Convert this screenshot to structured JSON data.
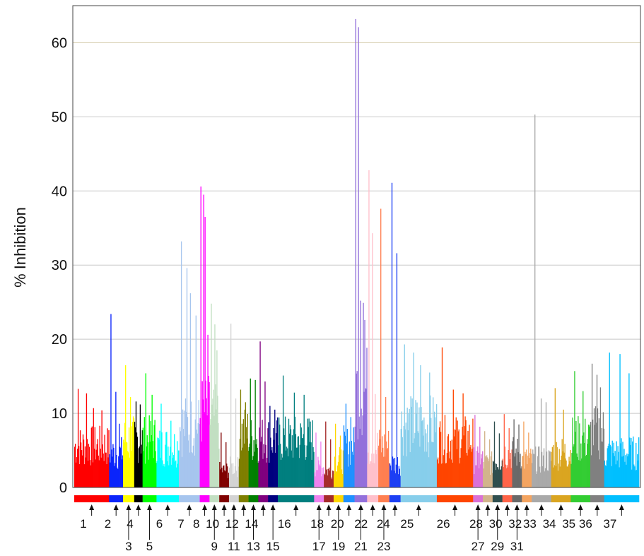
{
  "chart_data": {
    "type": "bar",
    "title": "",
    "xlabel": "",
    "ylabel": "% Inhibition",
    "ylim": [
      0,
      65
    ],
    "yticks": [
      0,
      10,
      20,
      30,
      40,
      50,
      60
    ],
    "grid": "horizontal",
    "groups": [
      {
        "label": "1",
        "color": "#ff0000",
        "n": 50,
        "base": 6,
        "peaks": [
          13.3,
          12.7,
          10.7,
          10.4
        ]
      },
      {
        "label": "2",
        "color": "#0b24fb",
        "n": 20,
        "base": 5,
        "peaks": [
          23.4,
          12.9,
          8.6
        ]
      },
      {
        "label": "3",
        "color": "#ffff00",
        "n": 16,
        "base": 7,
        "peaks": [
          16.5,
          12.2
        ]
      },
      {
        "label": "4",
        "color": "#000000",
        "n": 12,
        "base": 7,
        "peaks": [
          11.6,
          11.2
        ]
      },
      {
        "label": "5",
        "color": "#00ff00",
        "n": 20,
        "base": 7,
        "peaks": [
          15.4,
          12.5
        ]
      },
      {
        "label": "6",
        "color": "#00ffff",
        "n": 32,
        "base": 6,
        "peaks": [
          11.3,
          9.0
        ]
      },
      {
        "label": "7",
        "color": "#a6c5ee",
        "n": 30,
        "base": 9,
        "peaks": [
          33.2,
          29.6,
          26.2,
          23.2
        ]
      },
      {
        "label": "8",
        "color": "#ff00ff",
        "n": 14,
        "base": 11,
        "peaks": [
          40.6,
          39.5,
          36.5,
          20.6
        ]
      },
      {
        "label": "9",
        "color": "#c2dfc2",
        "n": 14,
        "base": 10,
        "peaks": [
          24.8,
          22.0,
          18.5
        ]
      },
      {
        "label": "10",
        "color": "#7f0000",
        "n": 14,
        "base": 2.5,
        "peaks": [
          7.4,
          6.1
        ]
      },
      {
        "label": "11",
        "color": "#d3d3d3",
        "n": 14,
        "base": 3,
        "peaks": [
          22.1,
          12.0
        ]
      },
      {
        "label": "12",
        "color": "#7f7f00",
        "n": 14,
        "base": 8,
        "peaks": [
          13.2,
          11.5
        ]
      },
      {
        "label": "13",
        "color": "#007f00",
        "n": 14,
        "base": 7,
        "peaks": [
          14.7,
          14.5
        ]
      },
      {
        "label": "14",
        "color": "#7f007f",
        "n": 14,
        "base": 7,
        "peaks": [
          19.7,
          14.3
        ]
      },
      {
        "label": "15",
        "color": "#00007f",
        "n": 14,
        "base": 7,
        "peaks": [
          11.0,
          10.5
        ]
      },
      {
        "label": "16",
        "color": "#007f7f",
        "n": 52,
        "base": 7,
        "peaks": [
          15.1,
          12.8,
          12.5
        ]
      },
      {
        "label": "17",
        "color": "#ee82ee",
        "n": 14,
        "base": 3,
        "peaks": [
          7.4,
          6.2
        ]
      },
      {
        "label": "18",
        "color": "#a52a2a",
        "n": 14,
        "base": 2.5,
        "peaks": [
          8.9,
          6.5
        ]
      },
      {
        "label": "19",
        "color": "#ffd700",
        "n": 14,
        "base": 4,
        "peaks": [
          8.6,
          7.0
        ]
      },
      {
        "label": "20",
        "color": "#1e90ff",
        "n": 16,
        "base": 6,
        "peaks": [
          11.3,
          9.5
        ]
      },
      {
        "label": "21",
        "color": "#9370db",
        "n": 18,
        "base": 14,
        "peaks": [
          63.2,
          62.1,
          25.2,
          24.9,
          22.6
        ]
      },
      {
        "label": "22",
        "color": "#ffc0cb",
        "n": 16,
        "base": 6,
        "peaks": [
          42.8,
          34.3,
          12.6
        ]
      },
      {
        "label": "23",
        "color": "#ff7f50",
        "n": 16,
        "base": 6,
        "peaks": [
          37.6,
          12.2
        ]
      },
      {
        "label": "24",
        "color": "#1c3ff4",
        "n": 16,
        "base": 3.5,
        "peaks": [
          41.1,
          31.6
        ]
      },
      {
        "label": "25",
        "color": "#87ceeb",
        "n": 52,
        "base": 9,
        "peaks": [
          19.3,
          18.2,
          16.5,
          15.5
        ]
      },
      {
        "label": "26",
        "color": "#ff4500",
        "n": 52,
        "base": 7,
        "peaks": [
          18.9,
          13.2,
          12.7
        ]
      },
      {
        "label": "27",
        "color": "#da70d6",
        "n": 14,
        "base": 4,
        "peaks": [
          9.8,
          8.2
        ]
      },
      {
        "label": "28",
        "color": "#d2b48c",
        "n": 14,
        "base": 3.5,
        "peaks": [
          7.6,
          6.5
        ]
      },
      {
        "label": "29",
        "color": "#2f4f4f",
        "n": 14,
        "base": 4,
        "peaks": [
          8.9,
          7.3
        ]
      },
      {
        "label": "30",
        "color": "#ff6347",
        "n": 14,
        "base": 5,
        "peaks": [
          9.9,
          8.0
        ]
      },
      {
        "label": "31",
        "color": "#696969",
        "n": 14,
        "base": 5,
        "peaks": [
          9.2,
          8.5
        ]
      },
      {
        "label": "32",
        "color": "#f4a460",
        "n": 14,
        "base": 4,
        "peaks": [
          8.9,
          7.4
        ]
      },
      {
        "label": "33",
        "color": "#a9a9a9",
        "n": 28,
        "base": 4,
        "peaks": [
          50.3,
          12.0,
          11.5
        ]
      },
      {
        "label": "34",
        "color": "#daa520",
        "n": 28,
        "base": 5,
        "peaks": [
          13.4,
          10.5
        ]
      },
      {
        "label": "35",
        "color": "#32cd32",
        "n": 28,
        "base": 7,
        "peaks": [
          15.7,
          13.0
        ]
      },
      {
        "label": "36",
        "color": "#808080",
        "n": 20,
        "base": 8,
        "peaks": [
          16.7,
          15.2,
          13.5
        ]
      },
      {
        "label": "37",
        "color": "#00bfff",
        "n": 50,
        "base": 5,
        "peaks": [
          18.2,
          18.0,
          15.4
        ]
      }
    ]
  }
}
